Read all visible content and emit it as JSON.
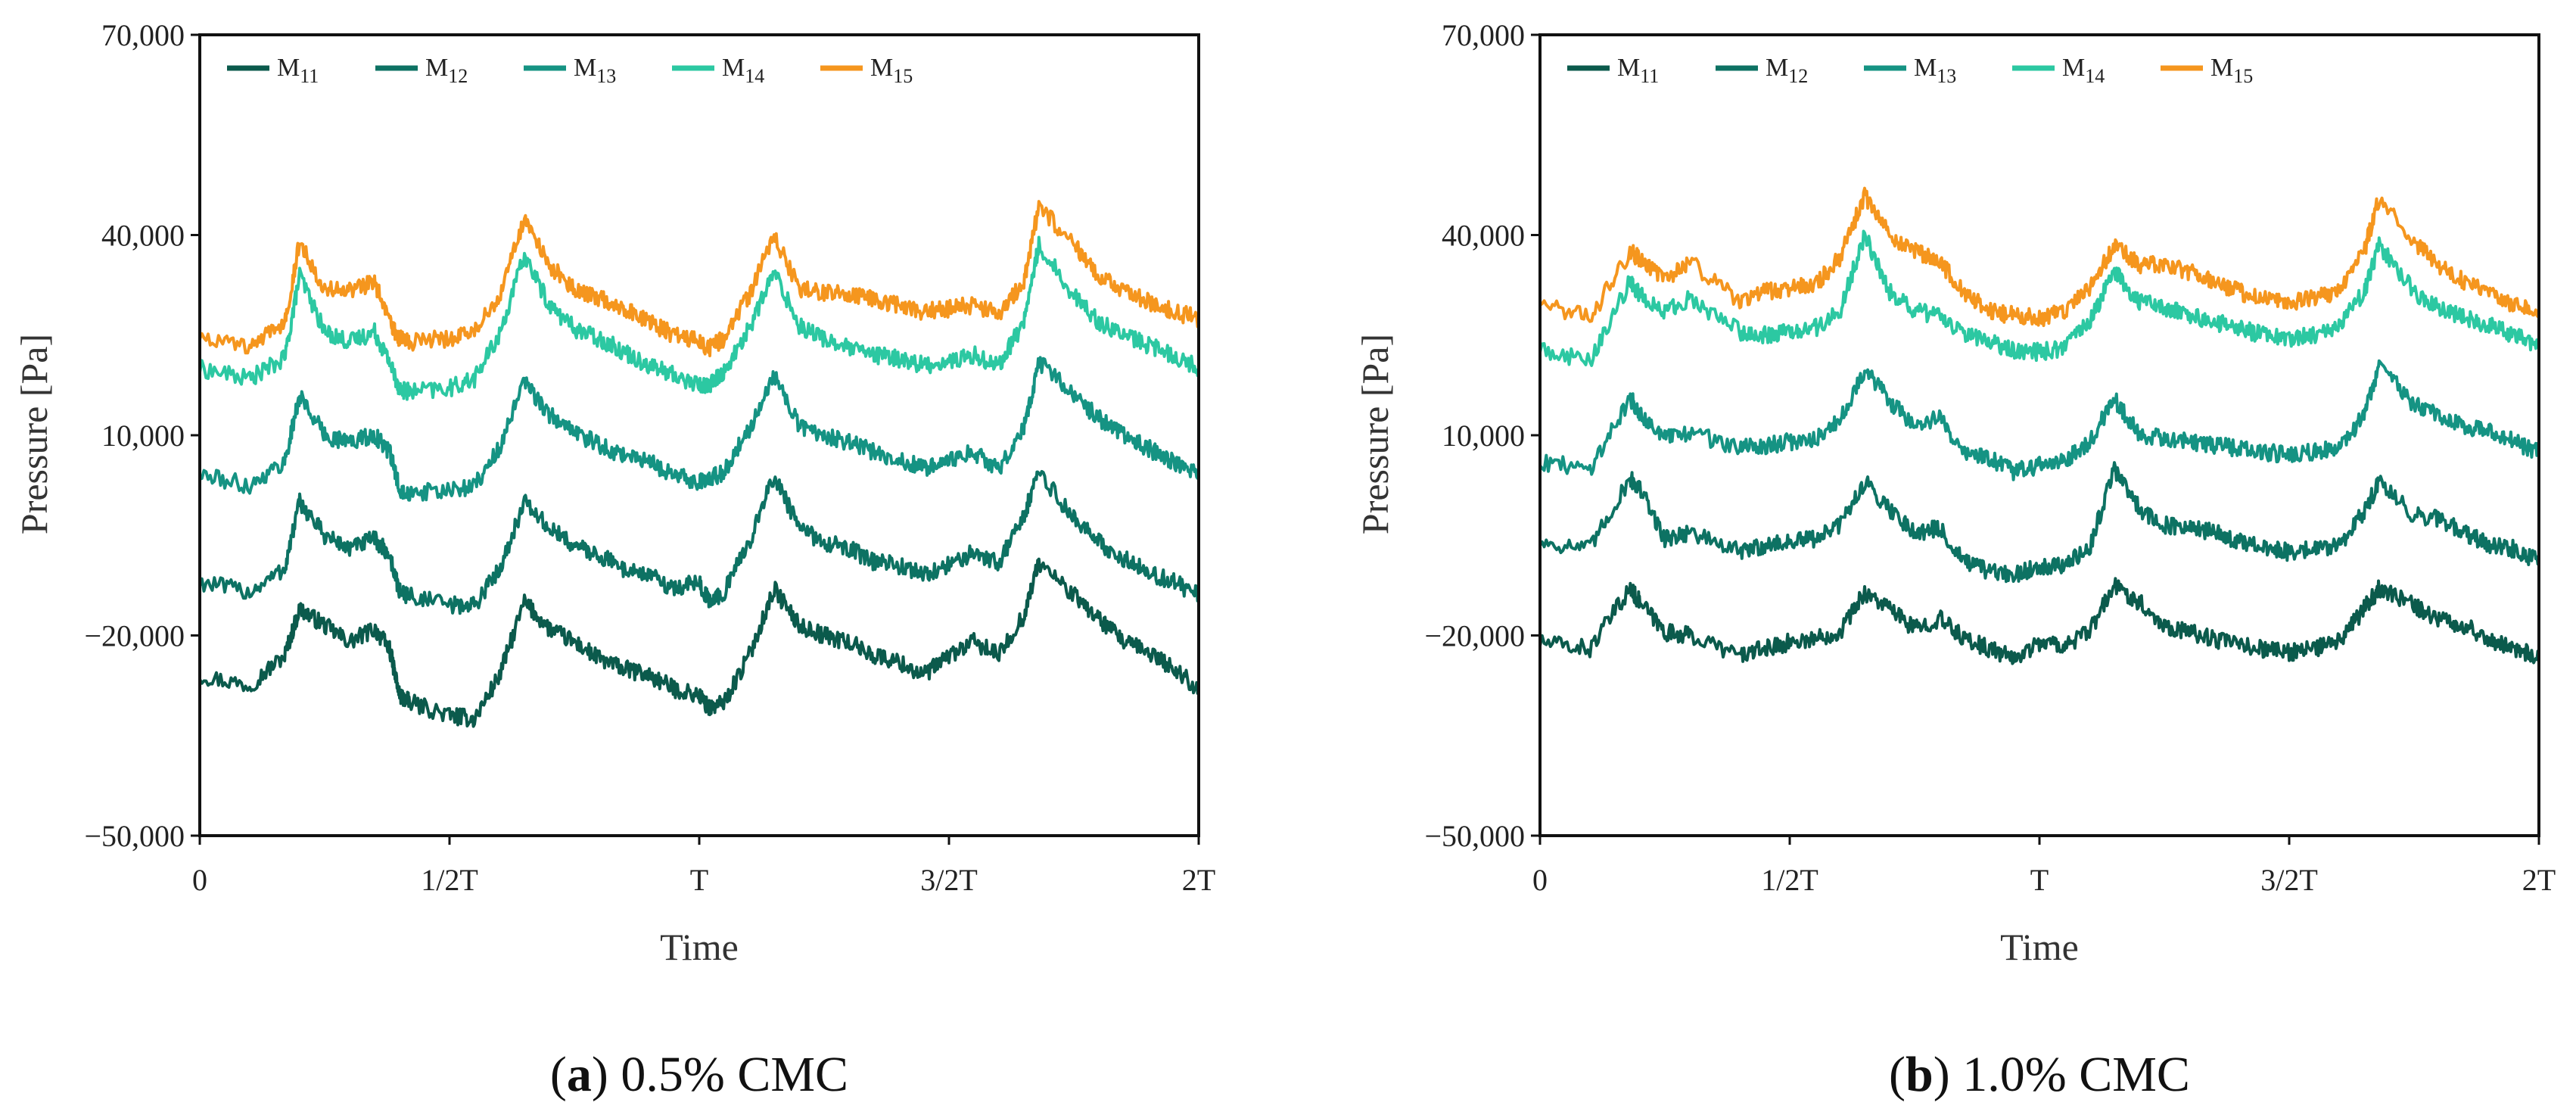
{
  "figure": {
    "colors": {
      "M11": "#0b5a4c",
      "M12": "#0d7263",
      "M13": "#159383",
      "M14": "#2cc8a2",
      "M15": "#f5961e",
      "axis": "#111111"
    }
  },
  "chart_data": [
    {
      "type": "line",
      "panel_letter": "a",
      "caption": "0.5% CMC",
      "xlabel": "Time",
      "ylabel": "Pressure [Pa]",
      "xticks": [
        "0",
        "1/2T",
        "T",
        "3/2T",
        "2T"
      ],
      "x_range": [
        0,
        2
      ],
      "yticks": [
        "70,000",
        "40,000",
        "10,000",
        "−20,000",
        "−50,000"
      ],
      "ylim": [
        -50000,
        70000
      ],
      "legend_position": "top-left",
      "series": [
        {
          "name": "M",
          "subscript": "11",
          "color": "#0b5a4c",
          "x": [
            0,
            0.1,
            0.17,
            0.2,
            0.25,
            0.3,
            0.35,
            0.38,
            0.4,
            0.42,
            0.5,
            0.55,
            0.6,
            0.65,
            0.7,
            0.75,
            0.8,
            0.85,
            0.9,
            0.95,
            1.0,
            1.02,
            1.05,
            1.1,
            1.15,
            1.2,
            1.25,
            1.3,
            1.35,
            1.4,
            1.45,
            1.5,
            1.55,
            1.6,
            1.65,
            1.68,
            1.75,
            1.8,
            1.85,
            1.9,
            1.95,
            2.0
          ],
          "values": [
            -26000,
            -27500,
            -23000,
            -16000,
            -18500,
            -21000,
            -19000,
            -22000,
            -29000,
            -30000,
            -32000,
            -32500,
            -26000,
            -15000,
            -19000,
            -21000,
            -23500,
            -25000,
            -26000,
            -28000,
            -29000,
            -31000,
            -30000,
            -23000,
            -13000,
            -18500,
            -20000,
            -21000,
            -23000,
            -24000,
            -26000,
            -23000,
            -21000,
            -23000,
            -17000,
            -9000,
            -14000,
            -17500,
            -21000,
            -22500,
            -25000,
            -28000
          ]
        },
        {
          "name": "M",
          "subscript": "12",
          "color": "#0d7263",
          "x": [
            0,
            0.1,
            0.17,
            0.2,
            0.25,
            0.3,
            0.35,
            0.38,
            0.4,
            0.42,
            0.5,
            0.55,
            0.6,
            0.65,
            0.7,
            0.75,
            0.8,
            0.85,
            0.9,
            0.95,
            1.0,
            1.02,
            1.05,
            1.1,
            1.15,
            1.2,
            1.25,
            1.3,
            1.35,
            1.4,
            1.45,
            1.5,
            1.55,
            1.6,
            1.65,
            1.68,
            1.75,
            1.8,
            1.85,
            1.9,
            1.95,
            2.0
          ],
          "values": [
            -12000,
            -13500,
            -10000,
            0,
            -5000,
            -7000,
            -5500,
            -8000,
            -13500,
            -14000,
            -15500,
            -15500,
            -10000,
            0,
            -4000,
            -6500,
            -8000,
            -10000,
            -11000,
            -13000,
            -12000,
            -15000,
            -13500,
            -6000,
            4000,
            -4000,
            -6000,
            -7000,
            -9000,
            -9500,
            -11000,
            -9500,
            -7500,
            -9000,
            -2000,
            4500,
            -2500,
            -6000,
            -8500,
            -10500,
            -12000,
            -14000
          ]
        },
        {
          "name": "M",
          "subscript": "13",
          "color": "#159383",
          "x": [
            0,
            0.1,
            0.17,
            0.2,
            0.25,
            0.3,
            0.35,
            0.38,
            0.4,
            0.42,
            0.5,
            0.55,
            0.6,
            0.65,
            0.7,
            0.75,
            0.8,
            0.85,
            0.9,
            0.95,
            1.0,
            1.02,
            1.05,
            1.1,
            1.15,
            1.2,
            1.25,
            1.3,
            1.35,
            1.4,
            1.45,
            1.5,
            1.55,
            1.6,
            1.65,
            1.68,
            1.75,
            1.8,
            1.85,
            1.9,
            1.95,
            2.0
          ],
          "values": [
            4000,
            2500,
            6000,
            16000,
            10000,
            9000,
            10000,
            7500,
            2000,
            1500,
            1500,
            2500,
            8000,
            18000,
            13000,
            10500,
            8500,
            7000,
            6000,
            4000,
            3000,
            3500,
            4500,
            11000,
            19000,
            11500,
            10000,
            9000,
            7500,
            6500,
            5000,
            6000,
            7500,
            5000,
            11000,
            21000,
            16000,
            12500,
            10000,
            8000,
            6000,
            4500
          ]
        },
        {
          "name": "M",
          "subscript": "14",
          "color": "#2cc8a2",
          "x": [
            0,
            0.1,
            0.17,
            0.2,
            0.25,
            0.3,
            0.35,
            0.38,
            0.4,
            0.42,
            0.5,
            0.55,
            0.6,
            0.65,
            0.7,
            0.75,
            0.8,
            0.85,
            0.9,
            0.95,
            1.0,
            1.02,
            1.05,
            1.1,
            1.15,
            1.2,
            1.25,
            1.3,
            1.35,
            1.4,
            1.45,
            1.5,
            1.55,
            1.6,
            1.65,
            1.68,
            1.75,
            1.8,
            1.85,
            1.9,
            1.95,
            2.0
          ],
          "values": [
            20000,
            18500,
            21500,
            34000,
            25500,
            24000,
            25500,
            21000,
            17000,
            16500,
            17000,
            18500,
            25000,
            37000,
            29500,
            26000,
            24500,
            22500,
            20500,
            19000,
            17500,
            17500,
            19500,
            26000,
            34500,
            26500,
            24500,
            23000,
            22000,
            21500,
            20500,
            21000,
            22000,
            20500,
            27000,
            38500,
            31000,
            27000,
            25000,
            23500,
            22000,
            20000
          ]
        },
        {
          "name": "M",
          "subscript": "15",
          "color": "#f5961e",
          "x": [
            0,
            0.1,
            0.17,
            0.2,
            0.25,
            0.3,
            0.35,
            0.38,
            0.4,
            0.42,
            0.5,
            0.55,
            0.6,
            0.65,
            0.7,
            0.75,
            0.8,
            0.85,
            0.9,
            0.95,
            1.0,
            1.02,
            1.05,
            1.1,
            1.15,
            1.2,
            1.25,
            1.3,
            1.35,
            1.4,
            1.45,
            1.5,
            1.55,
            1.6,
            1.65,
            1.68,
            1.75,
            1.8,
            1.85,
            1.9,
            1.95,
            2.0
          ],
          "values": [
            25000,
            23000,
            27000,
            39000,
            32000,
            31500,
            33000,
            27000,
            24500,
            24000,
            24500,
            25500,
            31000,
            42500,
            35500,
            32000,
            30500,
            29000,
            27000,
            25000,
            24000,
            23000,
            24500,
            31000,
            40000,
            32000,
            31500,
            31000,
            30500,
            29500,
            28500,
            29000,
            29500,
            28000,
            33000,
            44500,
            38500,
            34000,
            31500,
            30000,
            28500,
            27500
          ]
        }
      ]
    },
    {
      "type": "line",
      "panel_letter": "b",
      "caption": "1.0% CMC",
      "xlabel": "Time",
      "ylabel": "Pressure [Pa]",
      "xticks": [
        "0",
        "1/2T",
        "T",
        "3/2T",
        "2T"
      ],
      "x_range": [
        0,
        2
      ],
      "yticks": [
        "70,000",
        "40,000",
        "10,000",
        "−20,000",
        "−50,000"
      ],
      "ylim": [
        -50000,
        70000
      ],
      "legend_position": "top-left",
      "series": [
        {
          "name": "M",
          "subscript": "11",
          "color": "#0b5a4c",
          "x": [
            0,
            0.1,
            0.18,
            0.2,
            0.25,
            0.3,
            0.4,
            0.45,
            0.5,
            0.55,
            0.6,
            0.65,
            0.7,
            0.75,
            0.8,
            0.85,
            0.9,
            0.95,
            1.0,
            1.05,
            1.1,
            1.15,
            1.2,
            1.25,
            1.3,
            1.35,
            1.4,
            1.45,
            1.5,
            1.55,
            1.6,
            1.65,
            1.68,
            1.75,
            1.8,
            1.85,
            1.9,
            1.95,
            2.0
          ],
          "values": [
            -21000,
            -22000,
            -13000,
            -15000,
            -19500,
            -20000,
            -23000,
            -22000,
            -21000,
            -20500,
            -19500,
            -13500,
            -16000,
            -19000,
            -17500,
            -20500,
            -22000,
            -23500,
            -21000,
            -21500,
            -19500,
            -12500,
            -15000,
            -18500,
            -19500,
            -20500,
            -21500,
            -22000,
            -22500,
            -22000,
            -21000,
            -16000,
            -13000,
            -15500,
            -17500,
            -18500,
            -20500,
            -22000,
            -23000
          ]
        },
        {
          "name": "M",
          "subscript": "12",
          "color": "#0d7263",
          "x": [
            0,
            0.1,
            0.18,
            0.2,
            0.25,
            0.3,
            0.4,
            0.45,
            0.5,
            0.55,
            0.6,
            0.65,
            0.7,
            0.75,
            0.8,
            0.85,
            0.9,
            0.95,
            1.0,
            1.05,
            1.1,
            1.15,
            1.2,
            1.25,
            1.3,
            1.35,
            1.4,
            1.45,
            1.5,
            1.55,
            1.6,
            1.65,
            1.68,
            1.75,
            1.8,
            1.85,
            1.9,
            1.95,
            2.0
          ],
          "values": [
            -6000,
            -7000,
            3500,
            2000,
            -5500,
            -4500,
            -7500,
            -6500,
            -6000,
            -5500,
            -3500,
            3000,
            -1000,
            -4500,
            -4000,
            -9000,
            -10500,
            -11000,
            -9500,
            -9500,
            -7000,
            5000,
            -1000,
            -3500,
            -4000,
            -4500,
            -6000,
            -7000,
            -7500,
            -7000,
            -6500,
            -1500,
            3000,
            -2000,
            -2500,
            -4500,
            -6500,
            -7000,
            -9000
          ]
        },
        {
          "name": "M",
          "subscript": "13",
          "color": "#159383",
          "x": [
            0,
            0.1,
            0.18,
            0.2,
            0.25,
            0.3,
            0.4,
            0.45,
            0.5,
            0.55,
            0.6,
            0.65,
            0.7,
            0.75,
            0.8,
            0.85,
            0.9,
            0.95,
            1.0,
            1.05,
            1.1,
            1.15,
            1.2,
            1.25,
            1.3,
            1.35,
            1.4,
            1.45,
            1.5,
            1.55,
            1.6,
            1.65,
            1.68,
            1.75,
            1.8,
            1.85,
            1.9,
            1.95,
            2.0
          ],
          "values": [
            6000,
            5000,
            15500,
            13500,
            9500,
            10500,
            8000,
            8500,
            9000,
            9500,
            12000,
            20000,
            15000,
            11500,
            12500,
            7500,
            6500,
            4500,
            5500,
            6000,
            9000,
            15500,
            10000,
            9500,
            9000,
            8500,
            8000,
            7500,
            7000,
            7500,
            8000,
            13000,
            20500,
            14500,
            13000,
            11500,
            10500,
            9000,
            7500
          ]
        },
        {
          "name": "M",
          "subscript": "14",
          "color": "#2cc8a2",
          "x": [
            0,
            0.1,
            0.18,
            0.2,
            0.25,
            0.3,
            0.4,
            0.45,
            0.5,
            0.55,
            0.6,
            0.65,
            0.7,
            0.75,
            0.8,
            0.85,
            0.9,
            0.95,
            1.0,
            1.05,
            1.1,
            1.15,
            1.2,
            1.25,
            1.3,
            1.35,
            1.4,
            1.45,
            1.5,
            1.55,
            1.6,
            1.65,
            1.68,
            1.75,
            1.8,
            1.85,
            1.9,
            1.95,
            2.0
          ],
          "values": [
            23000,
            21000,
            33000,
            31000,
            28500,
            30500,
            25500,
            25000,
            25500,
            26000,
            28500,
            40000,
            31500,
            28500,
            28000,
            25000,
            24000,
            22500,
            22500,
            23000,
            27000,
            34500,
            30000,
            29000,
            28000,
            27000,
            26000,
            25000,
            24500,
            25000,
            26500,
            31500,
            38500,
            31500,
            29000,
            27500,
            26500,
            25000,
            23500
          ]
        },
        {
          "name": "M",
          "subscript": "15",
          "color": "#f5961e",
          "x": [
            0,
            0.1,
            0.18,
            0.2,
            0.25,
            0.3,
            0.4,
            0.45,
            0.5,
            0.55,
            0.6,
            0.65,
            0.7,
            0.75,
            0.8,
            0.85,
            0.9,
            0.95,
            1.0,
            1.05,
            1.1,
            1.15,
            1.2,
            1.25,
            1.3,
            1.35,
            1.4,
            1.45,
            1.5,
            1.55,
            1.6,
            1.65,
            1.68,
            1.75,
            1.8,
            1.85,
            1.9,
            1.95,
            2.0
          ],
          "values": [
            30000,
            27500,
            37500,
            36500,
            33500,
            36000,
            30000,
            31500,
            32000,
            32500,
            36500,
            46000,
            40000,
            37500,
            36000,
            31500,
            28500,
            28000,
            27500,
            28500,
            32000,
            38500,
            35500,
            35500,
            34500,
            33000,
            31500,
            30500,
            30000,
            30500,
            31500,
            37500,
            45500,
            39000,
            35500,
            33000,
            31500,
            29500,
            28500
          ]
        }
      ]
    }
  ]
}
